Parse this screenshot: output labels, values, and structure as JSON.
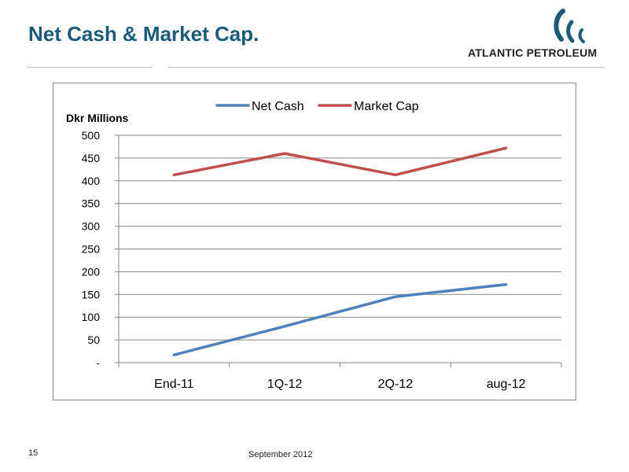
{
  "slide": {
    "title": "Net Cash & Market Cap.",
    "logo_text": "ATLANTIC PETROLEUM",
    "page_number": "15",
    "footer_date": "September 2012"
  },
  "colors": {
    "title": "#1a5a7a",
    "net_cash": "#4f81bd",
    "market_cap": "#c0504d"
  },
  "chart_data": {
    "type": "line",
    "ylabel": "Dkr Millions",
    "categories": [
      "End-11",
      "1Q-12",
      "2Q-12",
      "aug-12"
    ],
    "series": [
      {
        "name": "Net Cash",
        "values": [
          17,
          80,
          145,
          172
        ]
      },
      {
        "name": "Market Cap",
        "values": [
          413,
          460,
          413,
          472
        ]
      }
    ],
    "ylim": [
      0,
      500
    ],
    "yticks": [
      {
        "value": 0,
        "label": "-"
      },
      {
        "value": 50,
        "label": "50"
      },
      {
        "value": 100,
        "label": "100"
      },
      {
        "value": 150,
        "label": "150"
      },
      {
        "value": 200,
        "label": "200"
      },
      {
        "value": 250,
        "label": "250"
      },
      {
        "value": 300,
        "label": "300"
      },
      {
        "value": 350,
        "label": "350"
      },
      {
        "value": 400,
        "label": "400"
      },
      {
        "value": 450,
        "label": "450"
      },
      {
        "value": 500,
        "label": "500"
      }
    ],
    "grid": true,
    "legend_position": "top"
  }
}
